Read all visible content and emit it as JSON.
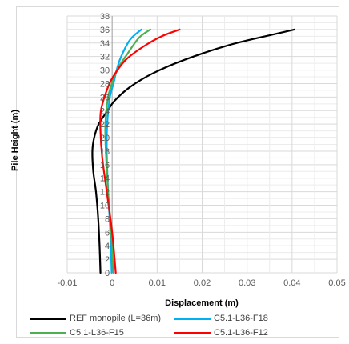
{
  "chart_data": {
    "type": "line",
    "title": "",
    "xlabel": "Displacement (m)",
    "ylabel": "Pile Height (m)",
    "xlim": [
      -0.01,
      0.05
    ],
    "ylim": [
      0,
      38
    ],
    "x_ticks": [
      "-0.01",
      "0",
      "0.01",
      "0.02",
      "0.03",
      "0.04",
      "0.05"
    ],
    "y_ticks": [
      "0",
      "2",
      "4",
      "6",
      "8",
      "10",
      "12",
      "14",
      "16",
      "18",
      "20",
      "22",
      "24",
      "26",
      "28",
      "30",
      "32",
      "34",
      "36",
      "38"
    ],
    "grid": true,
    "legend_position": "bottom",
    "series": [
      {
        "name": "REF monopile (L=36m)",
        "color": "#000000",
        "points": [
          [
            -0.0026,
            0
          ],
          [
            -0.0028,
            4
          ],
          [
            -0.0031,
            8
          ],
          [
            -0.0036,
            12
          ],
          [
            -0.0042,
            15
          ],
          [
            -0.0044,
            18
          ],
          [
            -0.004,
            20
          ],
          [
            -0.003,
            22
          ],
          [
            -0.001,
            24
          ],
          [
            0.0006,
            25.5
          ],
          [
            0.004,
            27.5
          ],
          [
            0.009,
            29.5
          ],
          [
            0.016,
            31.5
          ],
          [
            0.026,
            33.7
          ],
          [
            0.036,
            35.3
          ],
          [
            0.0405,
            36
          ]
        ]
      },
      {
        "name": "C5.1-L36-F18",
        "color": "#00b0f0",
        "points": [
          [
            -0.0001,
            0
          ],
          [
            -0.0004,
            6
          ],
          [
            -0.0009,
            12
          ],
          [
            -0.0012,
            18
          ],
          [
            -0.0011,
            22
          ],
          [
            -0.0005,
            26
          ],
          [
            0.0003,
            28
          ],
          [
            0.001,
            30
          ],
          [
            0.002,
            32
          ],
          [
            0.004,
            34.5
          ],
          [
            0.0065,
            36
          ]
        ]
      },
      {
        "name": "C5.1-L36-F15",
        "color": "#4caf50",
        "points": [
          [
            0.0003,
            0
          ],
          [
            -0.0002,
            6
          ],
          [
            -0.0009,
            12
          ],
          [
            -0.0014,
            18
          ],
          [
            -0.0015,
            22
          ],
          [
            -0.0009,
            26
          ],
          [
            0.0002,
            28.5
          ],
          [
            0.0015,
            30.5
          ],
          [
            0.0035,
            32.5
          ],
          [
            0.006,
            34.8
          ],
          [
            0.0085,
            36
          ]
        ]
      },
      {
        "name": "C5.1-L36-F12",
        "color": "#ff0000",
        "points": [
          [
            0.0008,
            0
          ],
          [
            0.0,
            6
          ],
          [
            -0.0012,
            12
          ],
          [
            -0.0022,
            17
          ],
          [
            -0.0026,
            21
          ],
          [
            -0.0025,
            24
          ],
          [
            -0.0012,
            27
          ],
          [
            0.0002,
            29
          ],
          [
            0.003,
            31.5
          ],
          [
            0.007,
            33.5
          ],
          [
            0.011,
            35
          ],
          [
            0.015,
            36
          ]
        ]
      }
    ]
  }
}
